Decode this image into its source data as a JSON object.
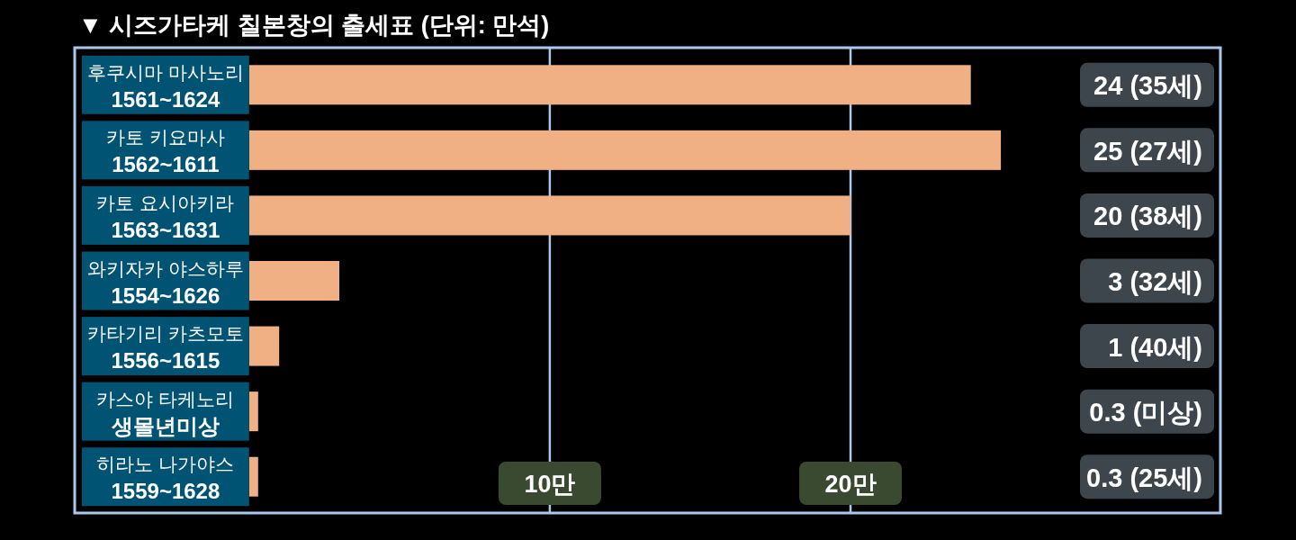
{
  "chart_data": {
    "type": "bar",
    "orientation": "horizontal",
    "title": "▼ 시즈가타케 칠본창의 출세표 (단위: 만석)",
    "categories": [
      "후쿠시마 마사노리\n1561~1624",
      "카토 키요마사\n1562~1611",
      "카토 요시아키라\n1563~1631",
      "와키자카 야스하루\n1554~1626",
      "카타기리 카츠모토\n1556~1615",
      "카스야 타케노리\n생몰년미상",
      "히라노 나가야스\n1559~1628"
    ],
    "values": [
      24,
      25,
      20,
      3,
      1,
      0.3,
      0.3
    ],
    "color": "#f0b084",
    "value_labels": [
      "24 (35세)",
      "25 (27세)",
      "20 (38세)",
      "3 (32세)",
      "1 (40세)",
      "0.3 (미상)",
      "0.3 (25세)"
    ],
    "xlim": [
      -5.8,
      32.3
    ],
    "xticks": [
      {
        "value": 10,
        "label": "10만"
      },
      {
        "value": 20,
        "label": "20만"
      }
    ],
    "grid": "x"
  }
}
